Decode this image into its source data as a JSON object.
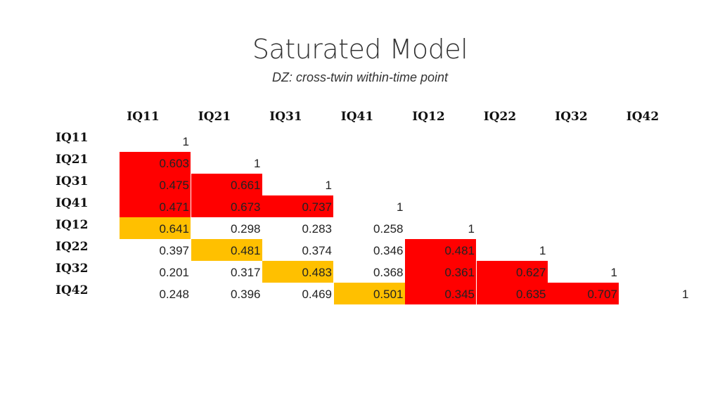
{
  "title": "Saturated Model",
  "subtitle": "DZ: cross-twin within-time point",
  "colors": {
    "high": "#ff0000",
    "cross": "#ffc000"
  },
  "columns": [
    "IQ11",
    "IQ21",
    "IQ31",
    "IQ41",
    "IQ12",
    "IQ22",
    "IQ32",
    "IQ42"
  ],
  "rows": [
    {
      "label": "IQ11",
      "cells": [
        {
          "value": "1",
          "hl": ""
        }
      ]
    },
    {
      "label": "IQ21",
      "cells": [
        {
          "value": "0.603",
          "hl": "red"
        },
        {
          "value": "1",
          "hl": ""
        }
      ]
    },
    {
      "label": "IQ31",
      "cells": [
        {
          "value": "0.475",
          "hl": "red"
        },
        {
          "value": "0.661",
          "hl": "red"
        },
        {
          "value": "1",
          "hl": ""
        }
      ]
    },
    {
      "label": "IQ41",
      "cells": [
        {
          "value": "0.471",
          "hl": "red"
        },
        {
          "value": "0.673",
          "hl": "red"
        },
        {
          "value": "0.737",
          "hl": "red"
        },
        {
          "value": "1",
          "hl": ""
        }
      ]
    },
    {
      "label": "IQ12",
      "cells": [
        {
          "value": "0.641",
          "hl": "amber"
        },
        {
          "value": "0.298",
          "hl": ""
        },
        {
          "value": "0.283",
          "hl": ""
        },
        {
          "value": "0.258",
          "hl": ""
        },
        {
          "value": "1",
          "hl": ""
        }
      ]
    },
    {
      "label": "IQ22",
      "cells": [
        {
          "value": "0.397",
          "hl": ""
        },
        {
          "value": "0.481",
          "hl": "amber"
        },
        {
          "value": "0.374",
          "hl": ""
        },
        {
          "value": "0.346",
          "hl": ""
        },
        {
          "value": "0.481",
          "hl": "red"
        },
        {
          "value": "1",
          "hl": ""
        }
      ]
    },
    {
      "label": "IQ32",
      "cells": [
        {
          "value": "0.201",
          "hl": ""
        },
        {
          "value": "0.317",
          "hl": ""
        },
        {
          "value": "0.483",
          "hl": "amber"
        },
        {
          "value": "0.368",
          "hl": ""
        },
        {
          "value": "0.361",
          "hl": "red"
        },
        {
          "value": "0.627",
          "hl": "red"
        },
        {
          "value": "1",
          "hl": ""
        }
      ]
    },
    {
      "label": "IQ42",
      "cells": [
        {
          "value": "0.248",
          "hl": ""
        },
        {
          "value": "0.396",
          "hl": ""
        },
        {
          "value": "0.469",
          "hl": ""
        },
        {
          "value": "0.501",
          "hl": "amber"
        },
        {
          "value": "0.345",
          "hl": "red"
        },
        {
          "value": "0.635",
          "hl": "red"
        },
        {
          "value": "0.707",
          "hl": "red"
        },
        {
          "value": "1",
          "hl": ""
        }
      ]
    }
  ]
}
